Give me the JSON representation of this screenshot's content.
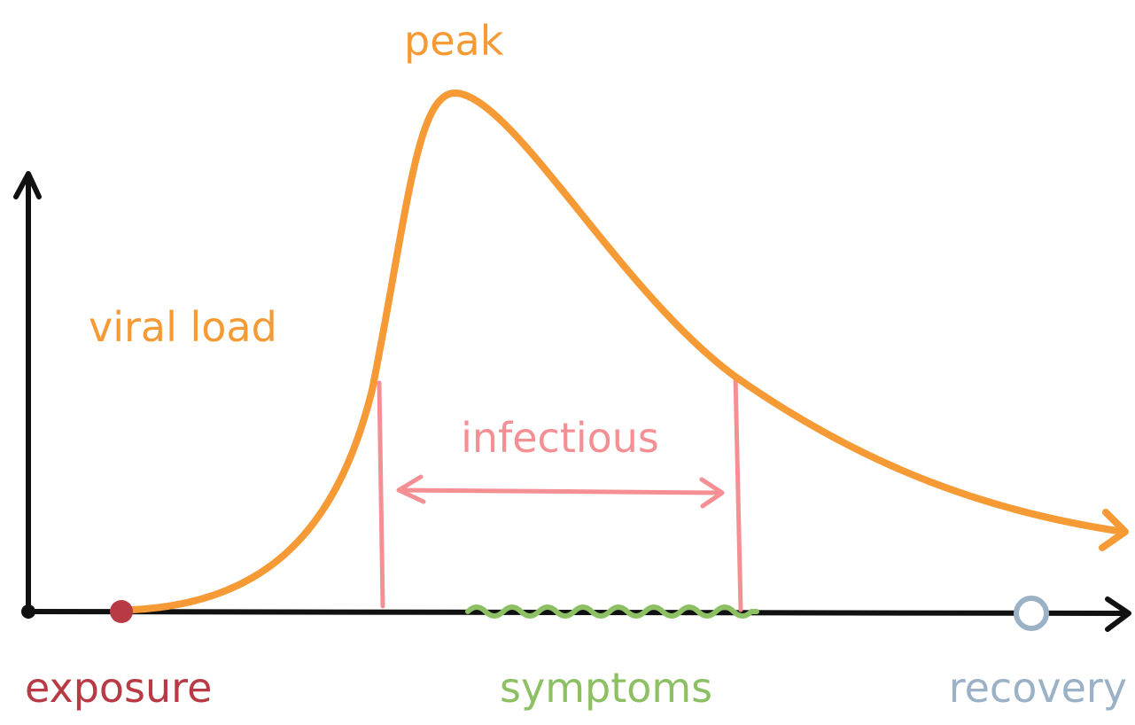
{
  "labels": {
    "peak": "peak",
    "viral_load": "viral load",
    "infectious": "infectious",
    "exposure": "exposure",
    "symptoms": "symptoms",
    "recovery": "recovery"
  }
}
